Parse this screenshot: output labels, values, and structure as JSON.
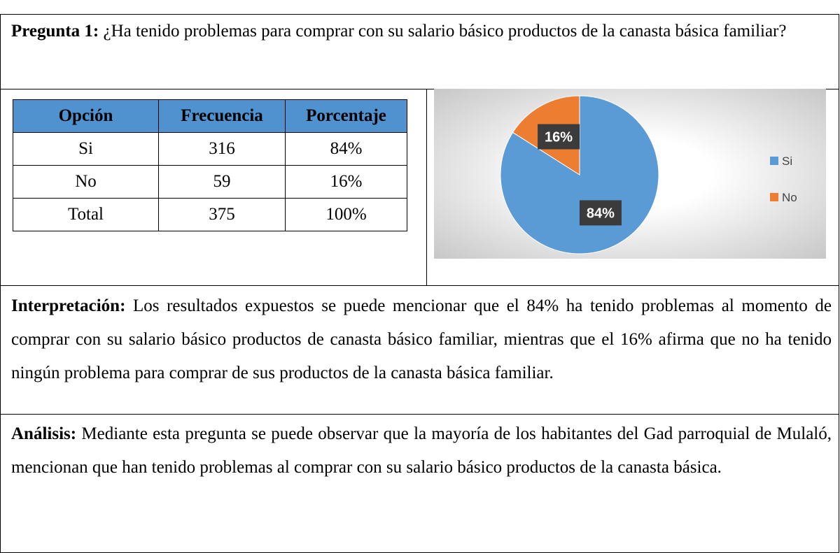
{
  "question": {
    "label": "Pregunta 1:",
    "text": "¿Ha tenido problemas para comprar con su salario básico productos de la canasta básica familiar?"
  },
  "table": {
    "header": [
      "Opción",
      "Frecuencia",
      "Porcentaje"
    ],
    "rows": [
      [
        "Si",
        "316",
        "84%"
      ],
      [
        "No",
        "59",
        "16%"
      ],
      [
        "Total",
        "375",
        "100%"
      ]
    ]
  },
  "chart_data": {
    "type": "pie",
    "categories": [
      "Si",
      "No"
    ],
    "values": [
      84,
      16
    ],
    "value_labels": [
      "84%",
      "16%"
    ],
    "colors": [
      "#5b9bd5",
      "#ed7d31"
    ],
    "legend": "right"
  },
  "interpretation": {
    "label": "Interpretación:",
    "text": "Los resultados expuestos se puede mencionar que el 84% ha tenido problemas al momento de comprar con su salario básico productos de canasta básico familiar, mientras que el 16% afirma que no ha tenido ningún problema para comprar de sus productos de la canasta básica familiar."
  },
  "analysis": {
    "label": "Análisis:",
    "text": "Mediante esta pregunta se puede observar que la mayoría de los habitantes del Gad parroquial de Mulaló, mencionan que han tenido problemas al comprar con su salario básico productos de la canasta básica."
  }
}
